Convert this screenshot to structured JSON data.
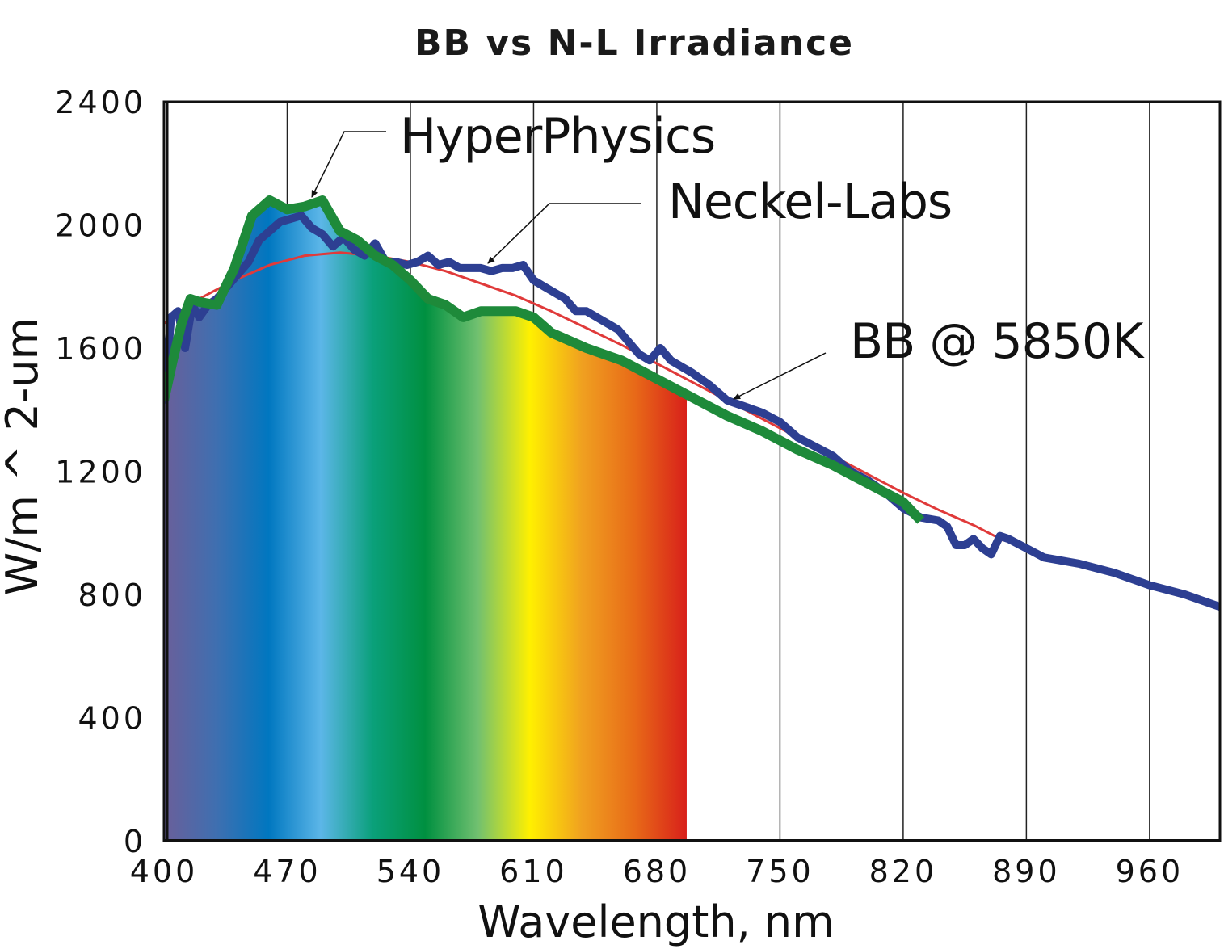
{
  "chart_data": {
    "type": "line",
    "title": "BB vs N-L Irradiance",
    "xlabel": "Wavelength, nm",
    "ylabel": "W/m ^ 2-um",
    "xlim": [
      400,
      1000
    ],
    "ylim": [
      0,
      2400
    ],
    "x_ticks": [
      400,
      470,
      540,
      610,
      680,
      750,
      820,
      890,
      960
    ],
    "y_ticks": [
      0,
      400,
      800,
      1200,
      1600,
      2000,
      2400
    ],
    "x_tick_labels": [
      "400",
      "470",
      "540",
      "610",
      "680",
      "750",
      "820",
      "890",
      "960"
    ],
    "y_tick_labels": [
      "0",
      "400",
      "800",
      "1200",
      "1600",
      "2000",
      "2400"
    ],
    "grid": "vertical",
    "visible_spectrum_fill": {
      "range": [
        400,
        697
      ],
      "colors": [
        "#6a5f9a",
        "#3f6fb0",
        "#0077c0",
        "#5cb6e8",
        "#0aa07a",
        "#009040",
        "#70c070",
        "#fff000",
        "#f0a020",
        "#e86a18",
        "#d8201a"
      ],
      "follows_series": "HyperPhysics"
    },
    "series": [
      {
        "name": "BB @ 5850K",
        "color": "#e03a3a",
        "width": 3,
        "x": [
          400,
          420,
          440,
          460,
          480,
          500,
          520,
          540,
          560,
          580,
          600,
          620,
          640,
          660,
          680,
          700,
          720,
          740,
          760,
          780,
          800,
          820,
          840,
          860,
          877
        ],
        "y": [
          1680,
          1760,
          1820,
          1870,
          1900,
          1910,
          1900,
          1880,
          1850,
          1810,
          1770,
          1720,
          1665,
          1610,
          1550,
          1490,
          1430,
          1370,
          1310,
          1250,
          1190,
          1130,
          1075,
          1025,
          975
        ]
      },
      {
        "name": "Neckel-Labs",
        "color": "#2d3f92",
        "width": 10,
        "x": [
          400,
          404,
          408,
          412,
          416,
          420,
          425,
          430,
          436,
          442,
          448,
          454,
          460,
          466,
          472,
          478,
          484,
          490,
          496,
          502,
          508,
          514,
          520,
          526,
          532,
          538,
          544,
          550,
          556,
          562,
          568,
          574,
          580,
          586,
          592,
          598,
          604,
          610,
          616,
          622,
          628,
          634,
          640,
          646,
          652,
          658,
          664,
          670,
          676,
          682,
          688,
          694,
          700,
          710,
          720,
          730,
          740,
          750,
          760,
          770,
          780,
          790,
          800,
          810,
          820,
          830,
          840,
          845,
          850,
          855,
          860,
          865,
          870,
          875,
          880,
          890,
          900,
          920,
          940,
          960,
          980,
          1000
        ],
        "y": [
          1420,
          1700,
          1720,
          1600,
          1740,
          1700,
          1740,
          1760,
          1800,
          1840,
          1880,
          1950,
          1980,
          2010,
          2020,
          2030,
          1990,
          1970,
          1930,
          1960,
          1920,
          1900,
          1940,
          1880,
          1880,
          1870,
          1880,
          1900,
          1870,
          1880,
          1860,
          1860,
          1860,
          1850,
          1860,
          1860,
          1870,
          1820,
          1800,
          1780,
          1760,
          1720,
          1720,
          1700,
          1680,
          1660,
          1620,
          1580,
          1560,
          1600,
          1560,
          1540,
          1520,
          1480,
          1430,
          1410,
          1390,
          1360,
          1310,
          1280,
          1250,
          1200,
          1170,
          1130,
          1080,
          1050,
          1040,
          1020,
          960,
          960,
          980,
          950,
          930,
          990,
          980,
          950,
          920,
          900,
          870,
          830,
          800,
          760
        ]
      },
      {
        "name": "HyperPhysics",
        "color": "#1e8a3a",
        "width": 12,
        "x": [
          400,
          405,
          410,
          415,
          420,
          430,
          440,
          450,
          460,
          470,
          480,
          490,
          500,
          510,
          520,
          530,
          540,
          550,
          560,
          570,
          580,
          590,
          600,
          610,
          620,
          640,
          660,
          680,
          700,
          720,
          740,
          760,
          780,
          800,
          820,
          830
        ],
        "y": [
          1430,
          1560,
          1680,
          1760,
          1750,
          1740,
          1860,
          2030,
          2080,
          2050,
          2060,
          2080,
          1980,
          1950,
          1900,
          1870,
          1820,
          1760,
          1740,
          1700,
          1720,
          1720,
          1720,
          1700,
          1650,
          1600,
          1560,
          1500,
          1440,
          1380,
          1330,
          1270,
          1220,
          1160,
          1100,
          1040
        ]
      }
    ],
    "annotations": [
      {
        "text": "HyperPhysics",
        "points_to": "HyperPhysics"
      },
      {
        "text": "Neckel-Labs",
        "points_to": "Neckel-Labs"
      },
      {
        "text": "BB @ 5850K",
        "points_to": "BB @ 5850K"
      }
    ]
  }
}
